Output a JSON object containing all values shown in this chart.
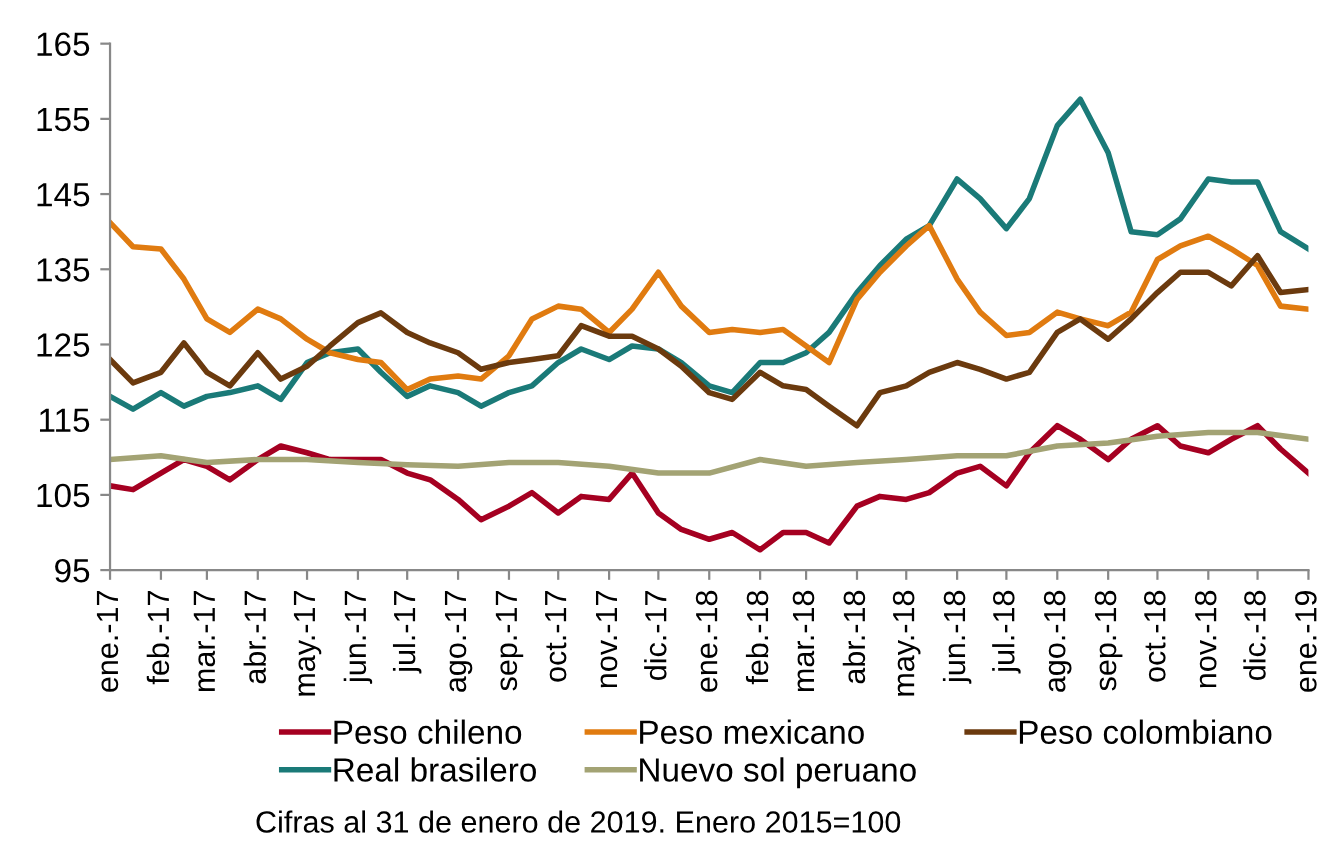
{
  "chart_data": {
    "type": "line",
    "x": [
      "2017-01-01",
      "2017-01-15",
      "2017-02-01",
      "2017-02-15",
      "2017-03-01",
      "2017-03-15",
      "2017-04-01",
      "2017-04-15",
      "2017-05-01",
      "2017-05-15",
      "2017-06-01",
      "2017-06-15",
      "2017-07-01",
      "2017-07-15",
      "2017-08-01",
      "2017-08-15",
      "2017-09-01",
      "2017-09-15",
      "2017-10-01",
      "2017-10-15",
      "2017-11-01",
      "2017-11-15",
      "2017-12-01",
      "2017-12-15",
      "2018-01-01",
      "2018-01-15",
      "2018-02-01",
      "2018-02-15",
      "2018-03-01",
      "2018-03-15",
      "2018-04-01",
      "2018-04-15",
      "2018-05-01",
      "2018-05-15",
      "2018-06-01",
      "2018-06-15",
      "2018-07-01",
      "2018-07-15",
      "2018-08-01",
      "2018-08-15",
      "2018-09-01",
      "2018-09-15",
      "2018-10-01",
      "2018-10-15",
      "2018-11-01",
      "2018-11-15",
      "2018-12-01",
      "2018-12-15",
      "2019-01-01"
    ],
    "series": [
      {
        "name": "Peso chileno",
        "color": "#a50021",
        "values": [
          106.2,
          105.7,
          107.9,
          109.7,
          108.8,
          107,
          109.7,
          111.5,
          110.6,
          109.7,
          109.7,
          109.7,
          107.9,
          107,
          104.4,
          101.7,
          103.5,
          105.3,
          102.6,
          104.8,
          104.4,
          107.9,
          102.6,
          100.4,
          99.1,
          100,
          97.7,
          100,
          100,
          98.6,
          103.5,
          104.8,
          104.4,
          105.3,
          107.9,
          108.8,
          106.2,
          110.6,
          114.2,
          112.4,
          109.7,
          112.4,
          114.2,
          111.5,
          110.6,
          112.4,
          114.2,
          111.1,
          107.9
        ]
      },
      {
        "name": "Real brasilero",
        "color": "#1a7a78",
        "values": [
          118.1,
          116.4,
          118.6,
          116.8,
          118.1,
          118.6,
          119.5,
          117.7,
          122.6,
          123.9,
          124.4,
          121.3,
          118.1,
          119.5,
          118.6,
          116.8,
          118.6,
          119.5,
          122.6,
          124.4,
          123,
          124.8,
          124.4,
          122.6,
          119.5,
          118.6,
          122.6,
          122.6,
          123.9,
          126.6,
          131.9,
          135.5,
          139,
          140.8,
          147,
          144.4,
          140.4,
          144.4,
          154.1,
          157.6,
          150.5,
          140,
          139.6,
          141.7,
          147,
          146.6,
          146.6,
          140,
          137.7
        ]
      },
      {
        "name": "Peso mexicano",
        "color": "#e07b10",
        "values": [
          141.2,
          138,
          137.7,
          133.7,
          128.4,
          126.6,
          129.7,
          128.4,
          125.7,
          123.9,
          123,
          122.6,
          119,
          120.4,
          120.8,
          120.4,
          123.5,
          128.4,
          130.1,
          129.7,
          126.6,
          129.7,
          134.6,
          130.1,
          126.6,
          127,
          126.6,
          127,
          124.8,
          122.6,
          131,
          134.6,
          138.1,
          140.8,
          133.7,
          129.3,
          126.2,
          126.6,
          129.3,
          128.4,
          127.5,
          129.3,
          136.3,
          138.1,
          139.4,
          137.7,
          135.5,
          130.1,
          129.7
        ]
      },
      {
        "name": "Nuevo sol peruano",
        "color": "#a3a374",
        "x": [
          "2017-01-01",
          "2017-02-01",
          "2017-03-01",
          "2017-04-01",
          "2017-05-01",
          "2017-06-01",
          "2017-07-01",
          "2017-08-01",
          "2017-09-01",
          "2017-10-01",
          "2017-11-01",
          "2017-12-01",
          "2018-01-01",
          "2018-02-01",
          "2018-03-01",
          "2018-04-01",
          "2018-05-01",
          "2018-06-01",
          "2018-07-01",
          "2018-08-01",
          "2018-09-01",
          "2018-10-01",
          "2018-11-01",
          "2018-12-01",
          "2019-01-01"
        ],
        "values": [
          109.7,
          110.2,
          109.3,
          109.7,
          109.7,
          109.3,
          109,
          108.8,
          109.3,
          109.3,
          108.8,
          107.9,
          107.9,
          109.7,
          108.8,
          109.3,
          109.7,
          110.2,
          110.2,
          111.5,
          111.9,
          112.8,
          113.3,
          113.3,
          112.4
        ]
      },
      {
        "name": "Peso colombiano",
        "color": "#6b3a0e",
        "values": [
          123,
          119.9,
          121.3,
          125.2,
          121.3,
          119.5,
          123.9,
          120.4,
          122.1,
          124.8,
          127.9,
          129.2,
          126.6,
          125.2,
          123.9,
          121.7,
          122.6,
          123,
          123.5,
          127.5,
          126.1,
          126.1,
          124.4,
          122.1,
          118.6,
          117.7,
          121.3,
          119.5,
          119,
          116.8,
          114.2,
          118.6,
          119.5,
          121.3,
          122.6,
          121.7,
          120.4,
          121.3,
          126.6,
          128.4,
          125.7,
          128.4,
          131.9,
          134.6,
          134.6,
          132.8,
          136.8,
          131.9,
          132.3
        ]
      }
    ],
    "xlim": [
      "2017-01-01",
      "2019-01-01"
    ],
    "xticks": [
      {
        "value": "2017-01-01",
        "label": "ene.-17"
      },
      {
        "value": "2017-02-01",
        "label": "feb.-17"
      },
      {
        "value": "2017-03-01",
        "label": "mar.-17"
      },
      {
        "value": "2017-04-01",
        "label": "abr.-17"
      },
      {
        "value": "2017-05-01",
        "label": "may.-17"
      },
      {
        "value": "2017-06-01",
        "label": "jun.-17"
      },
      {
        "value": "2017-07-01",
        "label": "jul.-17"
      },
      {
        "value": "2017-08-01",
        "label": "ago.-17"
      },
      {
        "value": "2017-09-01",
        "label": "sep.-17"
      },
      {
        "value": "2017-10-01",
        "label": "oct.-17"
      },
      {
        "value": "2017-11-01",
        "label": "nov.-17"
      },
      {
        "value": "2017-12-01",
        "label": "dic.-17"
      },
      {
        "value": "2018-01-01",
        "label": "ene.-18"
      },
      {
        "value": "2018-02-01",
        "label": "feb.-18"
      },
      {
        "value": "2018-03-01",
        "label": "mar.-18"
      },
      {
        "value": "2018-04-01",
        "label": "abr.-18"
      },
      {
        "value": "2018-05-01",
        "label": "may.-18"
      },
      {
        "value": "2018-06-01",
        "label": "jun.-18"
      },
      {
        "value": "2018-07-01",
        "label": "jul.-18"
      },
      {
        "value": "2018-08-01",
        "label": "ago.-18"
      },
      {
        "value": "2018-09-01",
        "label": "sep.-18"
      },
      {
        "value": "2018-10-01",
        "label": "oct.-18"
      },
      {
        "value": "2018-11-01",
        "label": "nov.-18"
      },
      {
        "value": "2018-12-01",
        "label": "dic.-18"
      },
      {
        "value": "2019-01-01",
        "label": "ene.-19"
      }
    ],
    "ylim": [
      95,
      165
    ],
    "yticks": [
      95,
      105,
      115,
      125,
      135,
      145,
      155,
      165
    ],
    "grid": false,
    "legend": "bottom",
    "line_style": "solid",
    "annotations": [
      "Cifras al 31 de enero de 2019. Enero 2015=100"
    ]
  }
}
